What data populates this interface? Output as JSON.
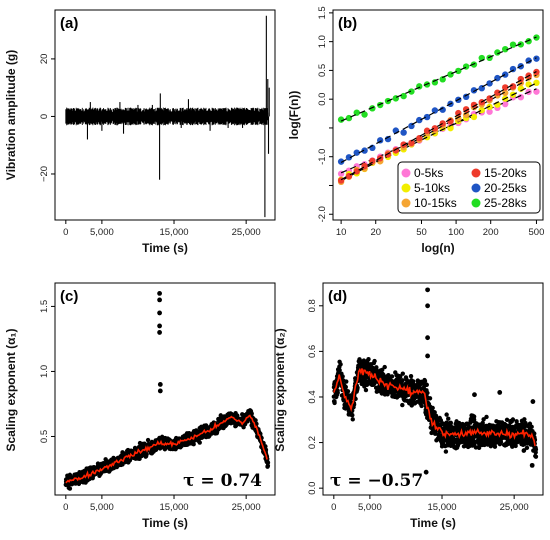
{
  "chart_data": [
    {
      "panel": "(a)",
      "type": "line",
      "xlabel": "Time (s)",
      "ylabel": "Vibration amplitude (g)",
      "xlim": [
        -1500,
        29000
      ],
      "ylim": [
        -36,
        37
      ],
      "xticks": [
        0,
        5000,
        15000,
        25000
      ],
      "xtick_labels": [
        "0",
        "5,000",
        "15,000",
        "25,000"
      ],
      "yticks": [
        -20,
        0,
        20
      ],
      "ytick_labels": [
        "−20",
        "0",
        "20"
      ],
      "baseline_noise": 2.2,
      "spikes": [
        [
          3000,
          -8
        ],
        [
          3400,
          5
        ],
        [
          5000,
          -5
        ],
        [
          7500,
          5
        ],
        [
          8000,
          -6
        ],
        [
          10000,
          4
        ],
        [
          12000,
          4
        ],
        [
          13000,
          -22
        ],
        [
          13100,
          8
        ],
        [
          16000,
          -4
        ],
        [
          17000,
          6
        ],
        [
          20000,
          -5
        ],
        [
          22500,
          -4
        ],
        [
          23000,
          3
        ],
        [
          24500,
          -4
        ],
        [
          26000,
          3
        ],
        [
          27600,
          -35
        ],
        [
          27800,
          35
        ],
        [
          28000,
          13
        ],
        [
          28100,
          -13
        ],
        [
          28200,
          10
        ]
      ],
      "color": "#000000"
    },
    {
      "panel": "(b)",
      "type": "scatter",
      "xlabel": "log(n)",
      "ylabel": "log(F(n))",
      "scale": "log-log",
      "xlim": [
        8.5,
        570
      ],
      "ylim": [
        -2.1,
        1.55
      ],
      "xticks": [
        10,
        20,
        50,
        100,
        200,
        500
      ],
      "xtick_labels": [
        "10",
        "20",
        "50",
        "100",
        "200",
        "500"
      ],
      "yticks": [
        -2.0,
        -1.5,
        -1.0,
        -0.5,
        0.0,
        0.5,
        1.0,
        1.5
      ],
      "ytick_labels": [
        "-2.0",
        "",
        "-1.0",
        "",
        "0.0",
        "0.5",
        "1.0",
        "1.5"
      ],
      "legend_position": "bottom-right",
      "series": [
        {
          "name": "0-5ks",
          "color": "#ff77d6",
          "x": [
            10,
            500
          ],
          "y": [
            -1.28,
            0.18
          ]
        },
        {
          "name": "5-10ks",
          "color": "#f2ee00",
          "x": [
            10,
            500
          ],
          "y": [
            -1.4,
            0.28
          ]
        },
        {
          "name": "10-15ks",
          "color": "#f5a533",
          "x": [
            10,
            500
          ],
          "y": [
            -1.42,
            0.42
          ]
        },
        {
          "name": "15-20ks",
          "color": "#ee3b2c",
          "x": [
            10,
            500
          ],
          "y": [
            -1.4,
            0.48
          ]
        },
        {
          "name": "20-25ks",
          "color": "#1f55c4",
          "x": [
            10,
            500
          ],
          "y": [
            -1.1,
            0.72
          ]
        },
        {
          "name": "25-28ks",
          "color": "#22dd22",
          "x": [
            10,
            500
          ],
          "y": [
            -0.38,
            1.08
          ]
        }
      ]
    },
    {
      "panel": "(c)",
      "type": "scatter",
      "xlabel": "Time (s)",
      "ylabel": "Scaling exponent (α₁)",
      "xlim": [
        -1500,
        29000
      ],
      "ylim": [
        0.05,
        1.68
      ],
      "xticks": [
        0,
        5000,
        15000,
        25000
      ],
      "xtick_labels": [
        "0",
        "5,000",
        "15,000",
        "25,000"
      ],
      "yticks": [
        0.5,
        1.0,
        1.5
      ],
      "ytick_labels": [
        "0.5",
        "1.0",
        "1.5"
      ],
      "annotation": "τ = 0.74",
      "trend": {
        "x": [
          0,
          2000,
          5000,
          8000,
          11000,
          13000,
          15000,
          18000,
          21000,
          23000,
          24500,
          25500,
          26500,
          27500,
          28000
        ],
        "y": [
          0.15,
          0.18,
          0.25,
          0.33,
          0.4,
          0.45,
          0.44,
          0.5,
          0.58,
          0.65,
          0.6,
          0.67,
          0.55,
          0.4,
          0.3
        ]
      },
      "spread": 0.07,
      "outliers": {
        "x": [
          13000,
          13000,
          13000,
          13000,
          13000,
          13100,
          13100
        ],
        "y": [
          1.6,
          1.55,
          1.45,
          1.35,
          1.3,
          0.9,
          0.85
        ]
      },
      "point_color": "#000000",
      "trend_color": "#ff2200"
    },
    {
      "panel": "(d)",
      "type": "scatter",
      "xlabel": "Time (s)",
      "ylabel": "Scaling exponent (α₂)",
      "xlim": [
        -1500,
        29000
      ],
      "ylim": [
        -0.03,
        0.9
      ],
      "xticks": [
        0,
        5000,
        15000,
        25000
      ],
      "xtick_labels": [
        "0",
        "5,000",
        "15,000",
        "25,000"
      ],
      "yticks": [
        0.0,
        0.2,
        0.4,
        0.6,
        0.8
      ],
      "ytick_labels": [
        "0.0",
        "0.2",
        "0.4",
        "0.6",
        "0.8"
      ],
      "annotation": "τ = −0.57",
      "trend": {
        "x": [
          0,
          800,
          1500,
          2500,
          3500,
          5000,
          7000,
          9000,
          11000,
          12500,
          13500,
          15000,
          18000,
          21000,
          24000,
          26000,
          27500,
          28000
        ],
        "y": [
          0.42,
          0.5,
          0.4,
          0.35,
          0.52,
          0.5,
          0.46,
          0.44,
          0.42,
          0.42,
          0.3,
          0.24,
          0.24,
          0.24,
          0.24,
          0.24,
          0.23,
          0.18
        ]
      },
      "spread": 0.09,
      "outliers": {
        "x": [
          13000,
          13000,
          13000,
          13000,
          12800,
          19500,
          23000,
          27500,
          27600
        ],
        "y": [
          0.87,
          0.8,
          0.66,
          0.58,
          0.07,
          0.41,
          0.42,
          0.1,
          0.38
        ]
      },
      "point_color": "#000000",
      "trend_color": "#ff2200"
    }
  ]
}
